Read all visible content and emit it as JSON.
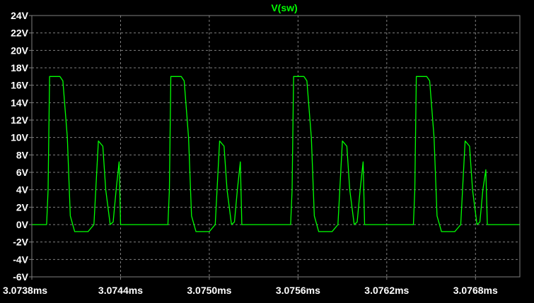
{
  "chart_data": {
    "type": "line",
    "title": "V(sw)",
    "xlabel": "",
    "ylabel": "",
    "xlim": [
      3.0738,
      3.0771
    ],
    "ylim": [
      -6,
      24
    ],
    "x_ticks": [
      "3.0738ms",
      "3.0744ms",
      "3.0750ms",
      "3.0756ms",
      "3.0762ms",
      "3.0768ms"
    ],
    "x_tick_values": [
      3.0738,
      3.0744,
      3.075,
      3.0756,
      3.0762,
      3.0768
    ],
    "y_ticks": [
      "24V",
      "22V",
      "20V",
      "18V",
      "16V",
      "14V",
      "12V",
      "10V",
      "8V",
      "6V",
      "4V",
      "2V",
      "0V",
      "-2V",
      "-4V",
      "-6V"
    ],
    "y_tick_values": [
      24,
      22,
      20,
      18,
      16,
      14,
      12,
      10,
      8,
      6,
      4,
      2,
      0,
      -2,
      -4,
      -6
    ],
    "grid": true,
    "series": [
      {
        "name": "V(sw)",
        "color": "#00ff00",
        "x": [
          3.0738,
          3.0739,
          3.07391,
          3.07392,
          3.07398,
          3.07399,
          3.07401,
          3.07404,
          3.07406,
          3.07409,
          3.07418,
          3.07422,
          3.07425,
          3.07428,
          3.0743,
          3.07433,
          3.07435,
          3.07437,
          3.07439,
          3.0744,
          3.07441,
          3.07442,
          3.07443,
          3.07445,
          3.07448,
          3.07449,
          3.07452,
          3.07472,
          3.07473,
          3.07474,
          3.0748,
          3.07481,
          3.07483,
          3.07486,
          3.07488,
          3.07491,
          3.075,
          3.07504,
          3.07507,
          3.0751,
          3.07512,
          3.07515,
          3.07517,
          3.07519,
          3.07521,
          3.07522,
          3.07523,
          3.07524,
          3.07525,
          3.07527,
          3.0753,
          3.07531,
          3.07534,
          3.07555,
          3.07556,
          3.07557,
          3.07563,
          3.07564,
          3.07566,
          3.07569,
          3.07571,
          3.07574,
          3.07583,
          3.07587,
          3.0759,
          3.07593,
          3.07595,
          3.07598,
          3.076,
          3.07602,
          3.07604,
          3.07605,
          3.07606,
          3.07607,
          3.07608,
          3.0761,
          3.07613,
          3.07614,
          3.07617,
          3.07638,
          3.07639,
          3.0764,
          3.07646,
          3.07647,
          3.07649,
          3.07652,
          3.07654,
          3.07657,
          3.07666,
          3.0767,
          3.07673,
          3.07676,
          3.07678,
          3.07681,
          3.07683,
          3.07685,
          3.07687,
          3.07688,
          3.07689,
          3.0769,
          3.07691,
          3.07693,
          3.07696,
          3.07697,
          3.077,
          3.0771
        ],
        "values": [
          0,
          0,
          4,
          17,
          17,
          17,
          16.5,
          10,
          1,
          -0.8,
          -0.8,
          0,
          9.6,
          9,
          4,
          0,
          0.3,
          4,
          7.2,
          0,
          0,
          0,
          0,
          0,
          0,
          0,
          0,
          0,
          4,
          17,
          17,
          17,
          16.5,
          10,
          1,
          -0.8,
          -0.8,
          0,
          9.6,
          9,
          4,
          0,
          0.3,
          4,
          7.2,
          0,
          0,
          0,
          0,
          0,
          0,
          0,
          0,
          0,
          4,
          17,
          17,
          17,
          16.5,
          10,
          1,
          -0.8,
          -0.8,
          0,
          9.6,
          9,
          4,
          0,
          0.3,
          4,
          7.2,
          0,
          0,
          0,
          0,
          0,
          0,
          0,
          0,
          0,
          4,
          17,
          17,
          17,
          16.5,
          10,
          1,
          -0.8,
          -0.8,
          0,
          9.6,
          9,
          4,
          0,
          0.3,
          4,
          6.3,
          0,
          0,
          0,
          0,
          0,
          0,
          0,
          0,
          0
        ]
      }
    ]
  },
  "style": {
    "background": "#000000",
    "axis_color": "#808080",
    "grid_color": "#808080",
    "label_color": "#ffffff",
    "trace_color": "#00ff00",
    "title_color": "#00ff00"
  }
}
